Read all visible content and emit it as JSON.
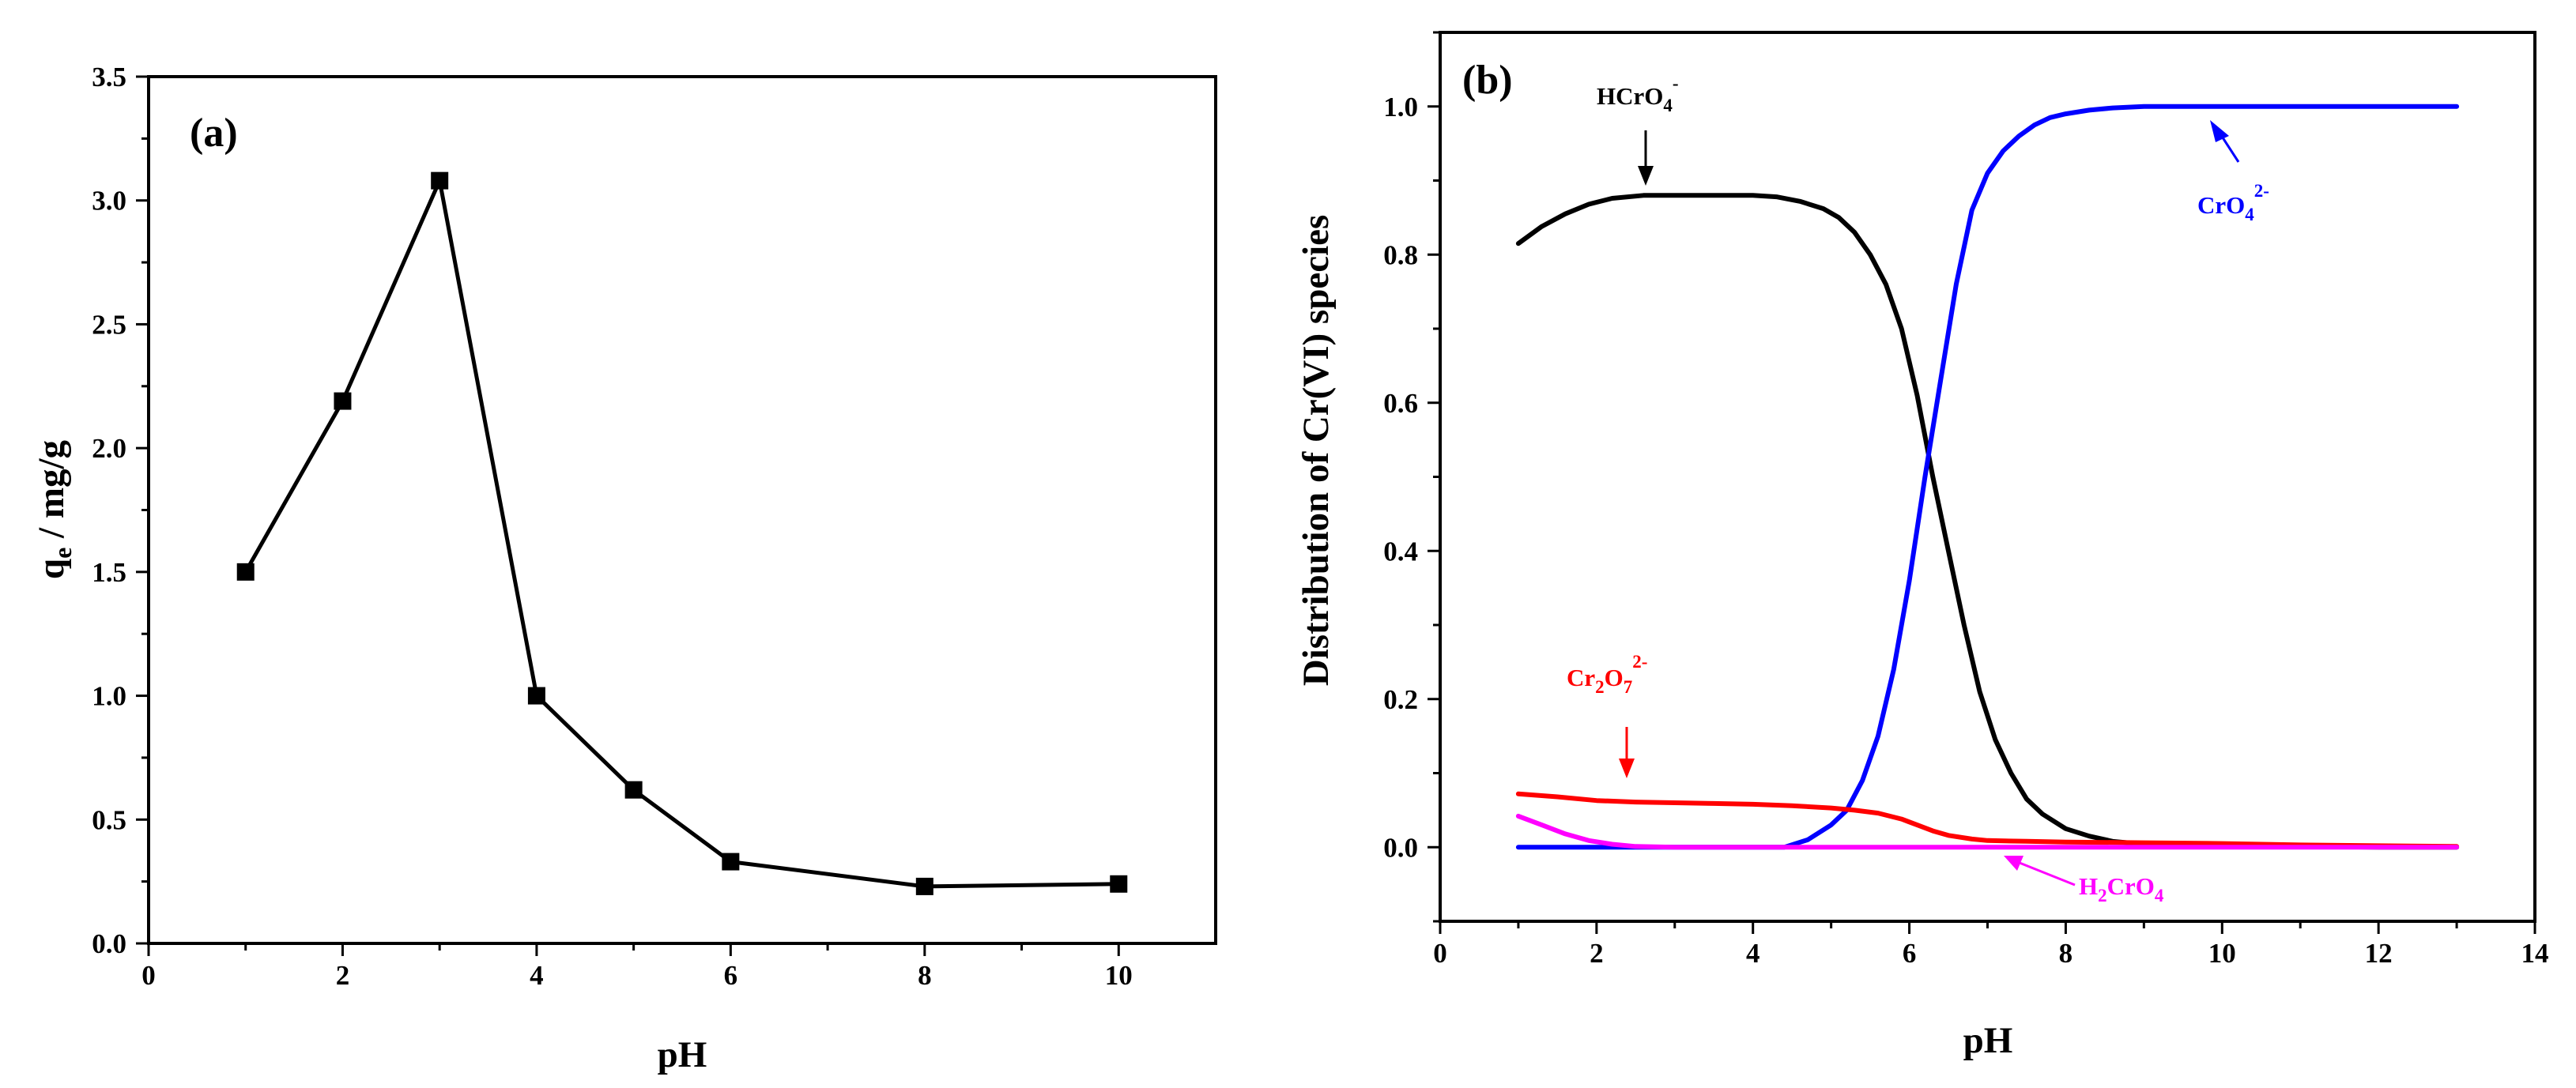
{
  "colors": {
    "HCrO4": "#000000",
    "CrO4": "#0000ff",
    "Cr2O7": "#ff0000",
    "H2CrO4": "#ff00ff",
    "axis": "#000000"
  },
  "chart_data": [
    {
      "id": "a",
      "type": "line",
      "panel_label": "(a)",
      "xlabel": "pH",
      "ylabel": "q",
      "ylabel_sub": "e",
      "ylabel_rest": " / mg/g",
      "xlim": [
        0,
        11
      ],
      "ylim": [
        0,
        3.5
      ],
      "xticks": [
        "0",
        "2",
        "4",
        "6",
        "8",
        "10"
      ],
      "xtick_values": [
        0,
        2,
        4,
        6,
        8,
        10
      ],
      "yticks": [
        "0.0",
        "0.5",
        "1.0",
        "1.5",
        "2.0",
        "2.5",
        "3.0",
        "3.5"
      ],
      "ytick_values": [
        0,
        0.5,
        1.0,
        1.5,
        2.0,
        2.5,
        3.0,
        3.5
      ],
      "marker": "square",
      "series": [
        {
          "name": "qe",
          "x": [
            1,
            2,
            3,
            4,
            5,
            6,
            8,
            10
          ],
          "y": [
            1.5,
            2.19,
            3.08,
            1.0,
            0.62,
            0.33,
            0.23,
            0.24
          ]
        }
      ]
    },
    {
      "id": "b",
      "type": "line",
      "panel_label": "(b)",
      "xlabel": "pH",
      "ylabel": "Distribution of Cr(VI) species",
      "xlim": [
        0,
        14
      ],
      "ylim": [
        -0.1,
        1.1
      ],
      "xticks": [
        "0",
        "2",
        "4",
        "6",
        "8",
        "10",
        "12",
        "14"
      ],
      "xtick_values": [
        0,
        2,
        4,
        6,
        8,
        10,
        12,
        14
      ],
      "yticks": [
        "0.0",
        "0.2",
        "0.4",
        "0.6",
        "0.8",
        "1.0"
      ],
      "ytick_values": [
        0,
        0.2,
        0.4,
        0.6,
        0.8,
        1.0
      ],
      "series": [
        {
          "name": "HCrO4-",
          "color_key": "HCrO4",
          "x": [
            1.0,
            1.3,
            1.6,
            1.9,
            2.2,
            2.6,
            3.0,
            3.5,
            4.0,
            4.3,
            4.6,
            4.9,
            5.1,
            5.3,
            5.5,
            5.7,
            5.9,
            6.1,
            6.3,
            6.5,
            6.7,
            6.9,
            7.1,
            7.3,
            7.5,
            7.7,
            8.0,
            8.3,
            8.6,
            9.0,
            10.0,
            11.0,
            12.0,
            13.0
          ],
          "y": [
            0.815,
            0.838,
            0.855,
            0.868,
            0.876,
            0.88,
            0.88,
            0.88,
            0.88,
            0.878,
            0.872,
            0.862,
            0.85,
            0.83,
            0.8,
            0.76,
            0.7,
            0.61,
            0.5,
            0.4,
            0.3,
            0.21,
            0.145,
            0.1,
            0.065,
            0.045,
            0.025,
            0.015,
            0.008,
            0.004,
            0.002,
            0.001,
            0.0,
            0.0
          ]
        },
        {
          "name": "CrO4 2-",
          "color_key": "CrO4",
          "x": [
            1.0,
            2.0,
            3.0,
            4.0,
            4.4,
            4.7,
            5.0,
            5.2,
            5.4,
            5.6,
            5.8,
            6.0,
            6.2,
            6.4,
            6.6,
            6.8,
            7.0,
            7.2,
            7.4,
            7.6,
            7.8,
            8.0,
            8.3,
            8.6,
            9.0,
            9.5,
            10.0,
            11.0,
            12.0,
            13.0
          ],
          "y": [
            0.0,
            0.0,
            0.0,
            0.0,
            0.0,
            0.01,
            0.03,
            0.05,
            0.09,
            0.15,
            0.24,
            0.36,
            0.5,
            0.63,
            0.76,
            0.86,
            0.91,
            0.94,
            0.96,
            0.975,
            0.985,
            0.99,
            0.995,
            0.998,
            1.0,
            1.0,
            1.0,
            1.0,
            1.0,
            1.0
          ]
        },
        {
          "name": "Cr2O7 2-",
          "color_key": "Cr2O7",
          "x": [
            1.0,
            1.5,
            2.0,
            2.5,
            3.0,
            3.5,
            4.0,
            4.5,
            5.0,
            5.3,
            5.6,
            5.9,
            6.1,
            6.3,
            6.5,
            6.8,
            7.0,
            7.5,
            8.0,
            9.0,
            10.0,
            11.0,
            12.0,
            13.0
          ],
          "y": [
            0.072,
            0.068,
            0.063,
            0.061,
            0.06,
            0.059,
            0.058,
            0.056,
            0.053,
            0.05,
            0.046,
            0.038,
            0.03,
            0.022,
            0.016,
            0.011,
            0.009,
            0.008,
            0.007,
            0.006,
            0.005,
            0.003,
            0.002,
            0.001
          ]
        },
        {
          "name": "H2CrO4",
          "color_key": "H2CrO4",
          "x": [
            1.0,
            1.3,
            1.6,
            1.9,
            2.2,
            2.5,
            3.0,
            4.0,
            6.0,
            8.0,
            10.0,
            13.0
          ],
          "y": [
            0.042,
            0.03,
            0.018,
            0.009,
            0.004,
            0.001,
            0.0,
            0.0,
            0.0,
            0.0,
            0.0,
            0.0
          ]
        }
      ],
      "annotations": {
        "HCrO4": {
          "base": "HCrO",
          "sub": "4",
          "sup": "-"
        },
        "CrO4": {
          "base": "CrO",
          "sub": "4",
          "sup": "2-"
        },
        "Cr2O7": {
          "base": "Cr",
          "sub1": "2",
          "mid": "O",
          "sub2": "7",
          "sup": "2-"
        },
        "H2CrO4": {
          "base": "H",
          "sub1": "2",
          "mid": "CrO",
          "sub2": "4"
        }
      }
    }
  ]
}
